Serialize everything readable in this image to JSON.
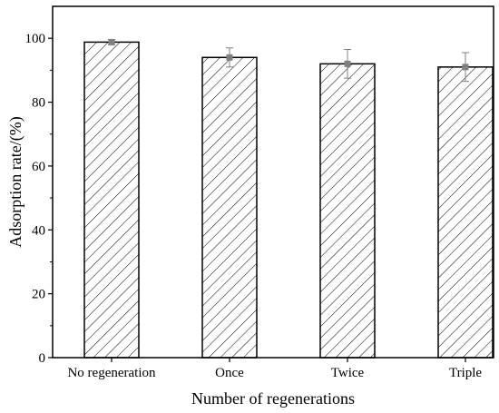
{
  "chart_data": {
    "type": "bar",
    "title": "",
    "xlabel": "Number of regenerations",
    "ylabel": "Adsorption rate/(%)",
    "categories": [
      "No regeneration",
      "Once",
      "Twice",
      "Triple"
    ],
    "values": [
      98.8,
      94.0,
      92.0,
      91.0
    ],
    "errors": [
      0.8,
      3.0,
      4.5,
      4.5
    ],
    "ylim": [
      0,
      110
    ],
    "yticks": [
      0,
      20,
      40,
      60,
      80,
      100
    ],
    "grid": false,
    "bar_fill": "hatched",
    "colors": {
      "bar_edge": "#000000",
      "hatch": "#000000",
      "error_marker": "#808080",
      "error_bar": "#808080",
      "background": "#ffffff"
    }
  }
}
